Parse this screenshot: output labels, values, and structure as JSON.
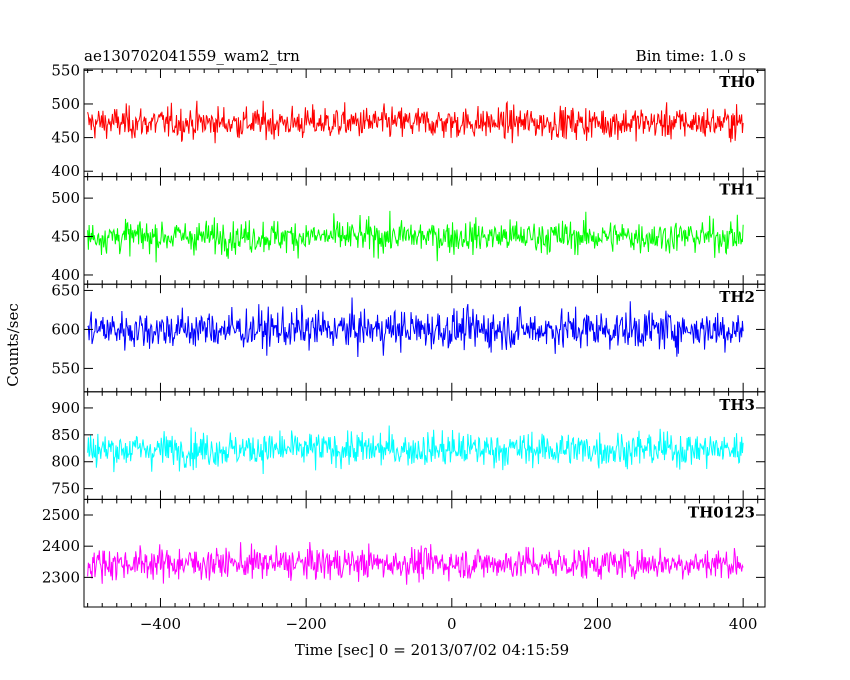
{
  "header": {
    "title": "ae130702041559_wam2_trn",
    "bin_time": "Bin time: 1.0 s"
  },
  "axes": {
    "ylabel": "Counts/sec",
    "xlabel": "Time [sec] 0 = 2013/07/02 04:15:59",
    "x_ticks": [
      "−400",
      "−200",
      "0",
      "200",
      "400"
    ]
  },
  "chart_data": {
    "type": "line",
    "title": "ae130702041559_wam2_trn",
    "xlabel": "Time [sec] 0 = 2013/07/02 04:15:59",
    "ylabel": "Counts/sec",
    "xlim": [
      -505,
      430
    ],
    "x_tick_values": [
      -400,
      -200,
      0,
      200,
      400
    ],
    "data_x_range": [
      -500,
      400
    ],
    "bin_time_s": 1.0,
    "grid": false,
    "panels": [
      {
        "name": "TH0",
        "color": "#ff0000",
        "ylim": [
          392,
          552
        ],
        "y_ticks": [
          400,
          450,
          500,
          550
        ],
        "mean": 472,
        "spread": 28
      },
      {
        "name": "TH1",
        "color": "#00ff00",
        "ylim": [
          388,
          528
        ],
        "y_ticks": [
          400,
          450,
          500
        ],
        "mean": 450,
        "spread": 25
      },
      {
        "name": "TH2",
        "color": "#0000ff",
        "ylim": [
          520,
          658
        ],
        "y_ticks": [
          550,
          600,
          650
        ],
        "mean": 600,
        "spread": 30
      },
      {
        "name": "TH3",
        "color": "#00ffff",
        "ylim": [
          730,
          930
        ],
        "y_ticks": [
          750,
          800,
          850,
          900
        ],
        "mean": 823,
        "spread": 38
      },
      {
        "name": "TH0123",
        "color": "#ff00ff",
        "ylim": [
          2205,
          2550
        ],
        "y_ticks": [
          2300,
          2400,
          2500
        ],
        "mean": 2345,
        "spread": 60
      }
    ]
  }
}
